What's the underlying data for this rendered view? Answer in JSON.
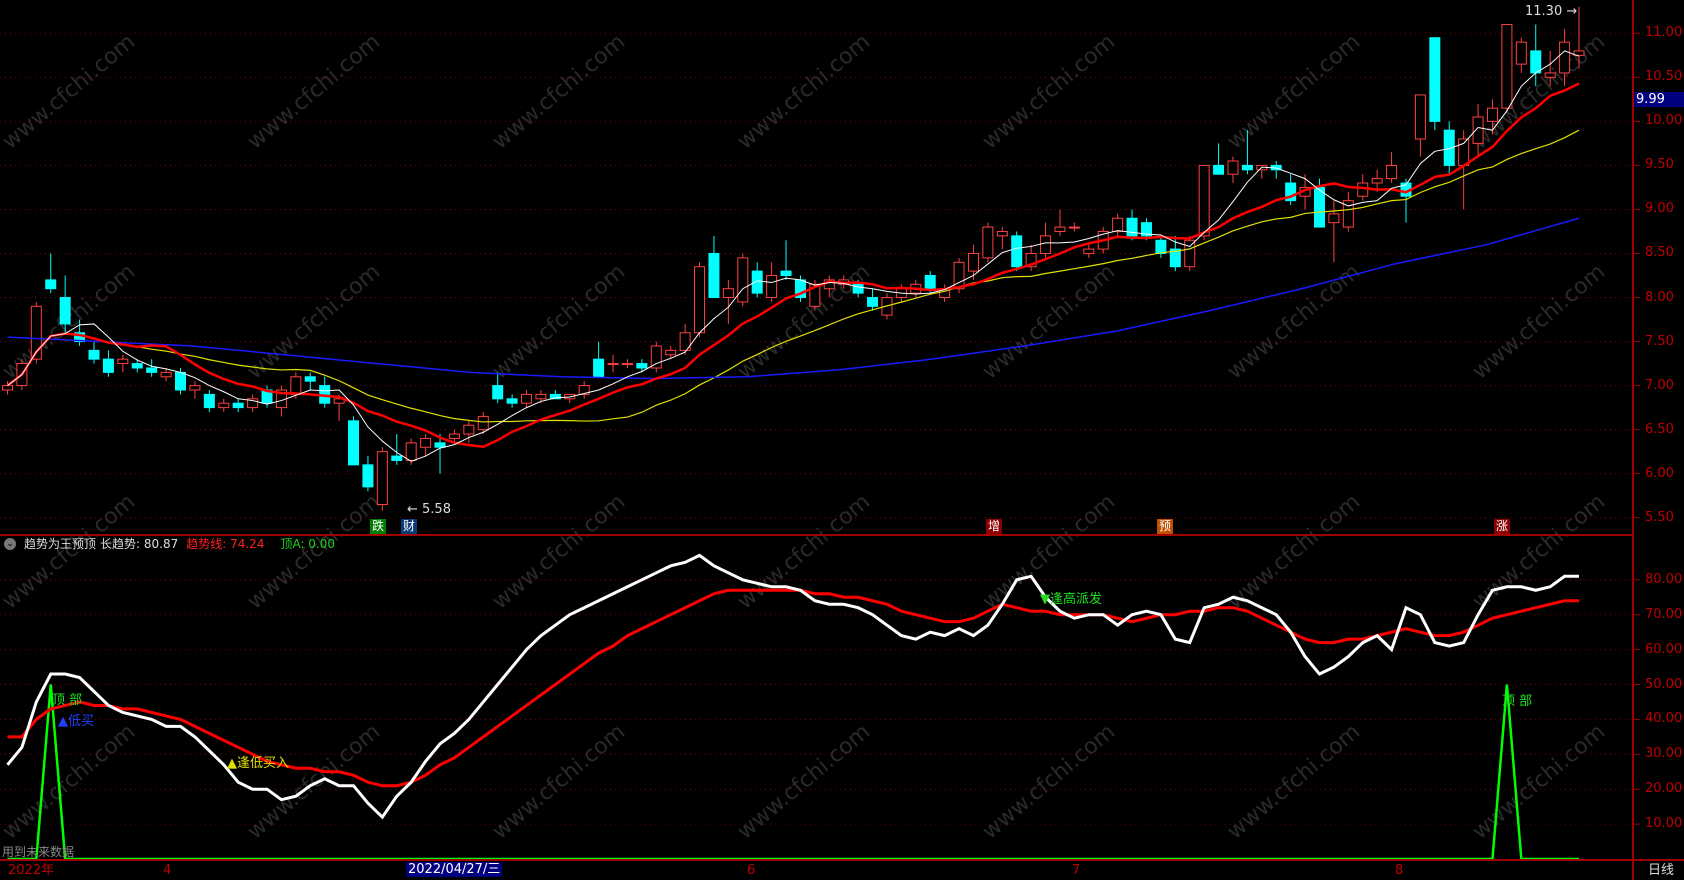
{
  "colors": {
    "up": "#ff4040",
    "down": "#00ffff",
    "ma5": "#ffffff",
    "ma10": "#ff0000",
    "ma20": "#e0e000",
    "ma_long": "#1a1aff",
    "axis": "#a00000",
    "grid": "#7a0000"
  },
  "watermark": "www.cfchi.com",
  "price_axis": {
    "ticks": [
      "11.00",
      "10.50",
      "10.00",
      "9.50",
      "9.00",
      "8.50",
      "8.00",
      "7.50",
      "7.00",
      "6.50",
      "6.00",
      "5.50"
    ],
    "current": "9.99"
  },
  "annotations": {
    "high": "11.30",
    "low": "5.58"
  },
  "markers": [
    {
      "text": "跌",
      "bg": "#008000"
    },
    {
      "text": "财",
      "bg": "#0a3a7a"
    },
    {
      "text": "增",
      "bg": "#8b0000"
    },
    {
      "text": "预",
      "bg": "#c05000"
    },
    {
      "text": "涨",
      "bg": "#8b0000"
    }
  ],
  "indicator": {
    "name": "趋势为王预顶",
    "long_label": "长趋势: 80.87",
    "trend_label": "趋势线: 74.24",
    "top_label": "顶A: 0.00",
    "ticks": [
      "80.00",
      "70.00",
      "60.00",
      "50.00",
      "40.00",
      "30.00",
      "20.00",
      "10.00"
    ],
    "signals": {
      "top1": "顶 部",
      "low_buy": "▲低买",
      "buy_low": "▲逢低买入",
      "sell_high": "▼逢高派发",
      "top2": "顶 部"
    },
    "future_note": "用到未来数据"
  },
  "date_axis": {
    "labels": [
      "2022年",
      "4",
      "6",
      "7",
      "8"
    ],
    "cursor": "2022/04/27/三",
    "period": "日线"
  },
  "chart_data": {
    "type": "candlestick",
    "price_range": [
      5.5,
      11.0
    ],
    "candles": [
      [
        6.95,
        7.05,
        6.9,
        7.0
      ],
      [
        7.0,
        7.3,
        6.95,
        7.25
      ],
      [
        7.3,
        7.95,
        7.25,
        7.9
      ],
      [
        8.2,
        8.5,
        8.05,
        8.1
      ],
      [
        8.0,
        8.25,
        7.6,
        7.7
      ],
      [
        7.6,
        7.75,
        7.45,
        7.5
      ],
      [
        7.4,
        7.5,
        7.25,
        7.3
      ],
      [
        7.3,
        7.4,
        7.1,
        7.15
      ],
      [
        7.25,
        7.35,
        7.15,
        7.3
      ],
      [
        7.25,
        7.3,
        7.15,
        7.2
      ],
      [
        7.2,
        7.3,
        7.1,
        7.15
      ],
      [
        7.1,
        7.2,
        7.05,
        7.15
      ],
      [
        7.15,
        7.2,
        6.9,
        6.95
      ],
      [
        6.95,
        7.05,
        6.85,
        7.0
      ],
      [
        6.9,
        6.95,
        6.7,
        6.75
      ],
      [
        6.75,
        6.85,
        6.7,
        6.8
      ],
      [
        6.8,
        6.85,
        6.7,
        6.75
      ],
      [
        6.75,
        6.9,
        6.7,
        6.85
      ],
      [
        6.95,
        7.0,
        6.75,
        6.8
      ],
      [
        6.75,
        7.0,
        6.65,
        6.95
      ],
      [
        6.9,
        7.15,
        6.85,
        7.1
      ],
      [
        7.1,
        7.15,
        6.95,
        7.05
      ],
      [
        7.0,
        7.1,
        6.75,
        6.8
      ],
      [
        6.8,
        6.9,
        6.6,
        6.85
      ],
      [
        6.6,
        6.65,
        6.1,
        6.1
      ],
      [
        6.1,
        6.2,
        5.8,
        5.85
      ],
      [
        5.65,
        6.3,
        5.58,
        6.25
      ],
      [
        6.2,
        6.45,
        6.1,
        6.15
      ],
      [
        6.15,
        6.4,
        6.1,
        6.35
      ],
      [
        6.3,
        6.45,
        6.2,
        6.4
      ],
      [
        6.35,
        6.45,
        6.0,
        6.3
      ],
      [
        6.4,
        6.5,
        6.35,
        6.45
      ],
      [
        6.45,
        6.6,
        6.35,
        6.55
      ],
      [
        6.5,
        6.7,
        6.45,
        6.65
      ],
      [
        7.0,
        7.15,
        6.8,
        6.85
      ],
      [
        6.85,
        6.9,
        6.75,
        6.8
      ],
      [
        6.8,
        6.95,
        6.75,
        6.9
      ],
      [
        6.85,
        6.95,
        6.8,
        6.9
      ],
      [
        6.9,
        6.95,
        6.85,
        6.85
      ],
      [
        6.85,
        6.9,
        6.8,
        6.9
      ],
      [
        6.9,
        7.05,
        6.85,
        7.0
      ],
      [
        7.3,
        7.5,
        7.1,
        7.1
      ],
      [
        7.25,
        7.35,
        7.15,
        7.25
      ],
      [
        7.25,
        7.3,
        7.2,
        7.25
      ],
      [
        7.25,
        7.3,
        7.15,
        7.2
      ],
      [
        7.2,
        7.5,
        7.15,
        7.45
      ],
      [
        7.35,
        7.45,
        7.3,
        7.4
      ],
      [
        7.4,
        7.7,
        7.35,
        7.6
      ],
      [
        7.6,
        8.4,
        7.55,
        8.35
      ],
      [
        8.5,
        8.7,
        8.0,
        8.0
      ],
      [
        8.0,
        8.2,
        7.7,
        8.1
      ],
      [
        7.95,
        8.5,
        7.9,
        8.45
      ],
      [
        8.3,
        8.4,
        8.0,
        8.05
      ],
      [
        8.0,
        8.4,
        7.95,
        8.25
      ],
      [
        8.3,
        8.65,
        8.2,
        8.25
      ],
      [
        8.2,
        8.25,
        7.95,
        8.0
      ],
      [
        7.9,
        8.2,
        7.85,
        8.15
      ],
      [
        8.1,
        8.25,
        8.0,
        8.2
      ],
      [
        8.15,
        8.25,
        8.1,
        8.2
      ],
      [
        8.15,
        8.2,
        8.0,
        8.05
      ],
      [
        8.0,
        8.1,
        7.85,
        7.9
      ],
      [
        7.8,
        8.05,
        7.75,
        8.0
      ],
      [
        8.0,
        8.15,
        7.95,
        8.1
      ],
      [
        8.05,
        8.2,
        8.0,
        8.15
      ],
      [
        8.25,
        8.3,
        8.05,
        8.1
      ],
      [
        8.0,
        8.15,
        7.95,
        8.1
      ],
      [
        8.1,
        8.45,
        8.05,
        8.4
      ],
      [
        8.3,
        8.6,
        8.2,
        8.5
      ],
      [
        8.45,
        8.85,
        8.4,
        8.8
      ],
      [
        8.7,
        8.8,
        8.55,
        8.75
      ],
      [
        8.7,
        8.75,
        8.3,
        8.35
      ],
      [
        8.35,
        8.6,
        8.3,
        8.5
      ],
      [
        8.5,
        8.85,
        8.45,
        8.7
      ],
      [
        8.75,
        9.0,
        8.7,
        8.8
      ],
      [
        8.8,
        8.85,
        8.75,
        8.8
      ],
      [
        8.5,
        8.6,
        8.45,
        8.55
      ],
      [
        8.55,
        8.8,
        8.5,
        8.75
      ],
      [
        8.75,
        8.95,
        8.7,
        8.9
      ],
      [
        8.9,
        9.0,
        8.65,
        8.7
      ],
      [
        8.85,
        8.9,
        8.65,
        8.7
      ],
      [
        8.65,
        8.7,
        8.45,
        8.5
      ],
      [
        8.55,
        8.7,
        8.3,
        8.35
      ],
      [
        8.35,
        8.7,
        8.3,
        8.65
      ],
      [
        8.7,
        9.5,
        8.65,
        9.5
      ],
      [
        9.5,
        9.75,
        9.4,
        9.4
      ],
      [
        9.4,
        9.6,
        9.3,
        9.55
      ],
      [
        9.5,
        9.9,
        9.4,
        9.45
      ],
      [
        9.45,
        9.5,
        9.35,
        9.5
      ],
      [
        9.5,
        9.55,
        9.35,
        9.45
      ],
      [
        9.3,
        9.4,
        9.05,
        9.1
      ],
      [
        9.15,
        9.4,
        9.0,
        9.25
      ],
      [
        9.25,
        9.35,
        8.8,
        8.8
      ],
      [
        8.85,
        9.1,
        8.4,
        8.95
      ],
      [
        8.8,
        9.2,
        8.75,
        9.1
      ],
      [
        9.15,
        9.4,
        9.1,
        9.3
      ],
      [
        9.3,
        9.45,
        9.2,
        9.35
      ],
      [
        9.35,
        9.65,
        9.3,
        9.5
      ],
      [
        9.3,
        9.35,
        8.85,
        9.15
      ],
      [
        9.8,
        10.3,
        9.6,
        10.3
      ],
      [
        10.95,
        10.95,
        9.9,
        10.0
      ],
      [
        9.9,
        10.0,
        9.4,
        9.5
      ],
      [
        9.5,
        9.9,
        9.0,
        9.8
      ],
      [
        9.75,
        10.2,
        9.6,
        10.05
      ],
      [
        10.0,
        10.25,
        9.85,
        10.15
      ],
      [
        10.15,
        11.1,
        10.1,
        11.1
      ],
      [
        10.65,
        10.95,
        10.55,
        10.9
      ],
      [
        10.8,
        11.1,
        10.4,
        10.55
      ],
      [
        10.5,
        10.8,
        10.4,
        10.55
      ],
      [
        10.55,
        11.05,
        10.4,
        10.9
      ],
      [
        10.75,
        11.3,
        10.6,
        10.8
      ]
    ],
    "ma_long": [
      7.55,
      7.5,
      7.45,
      7.35,
      7.25,
      7.15,
      7.1,
      7.08,
      7.1,
      7.18,
      7.3,
      7.45,
      7.62,
      7.85,
      8.1,
      8.38,
      8.6,
      8.9
    ],
    "indicator_range": [
      0,
      90
    ],
    "long_trend": [
      27,
      32,
      45,
      53,
      53,
      52,
      48,
      44,
      42,
      41,
      40,
      38,
      38,
      35,
      31,
      27,
      22,
      20,
      20,
      17,
      18,
      21,
      23,
      21,
      21,
      16,
      12,
      18,
      22,
      28,
      33,
      36,
      40,
      45,
      50,
      55,
      60,
      64,
      67,
      70,
      72,
      74,
      76,
      78,
      80,
      82,
      84,
      85,
      87,
      84,
      82,
      80,
      79,
      78,
      78,
      77,
      74,
      73,
      73,
      72,
      70,
      67,
      64,
      63,
      65,
      64,
      66,
      64,
      67,
      73,
      80,
      81,
      75,
      71,
      69,
      70,
      70,
      67,
      70,
      71,
      70,
      63,
      62,
      72,
      73,
      75,
      74,
      72,
      70,
      65,
      58,
      53,
      55,
      58,
      62,
      64,
      60,
      72,
      70,
      62,
      61,
      62,
      70,
      77,
      78,
      78,
      77,
      78,
      81,
      81
    ],
    "trend_line": [
      35,
      35,
      40,
      43,
      44,
      45,
      44,
      44,
      43,
      43,
      42,
      41,
      40,
      38,
      36,
      34,
      32,
      30,
      28,
      27,
      26,
      26,
      25,
      25,
      24,
      22,
      21,
      21,
      22,
      24,
      27,
      29,
      32,
      35,
      38,
      41,
      44,
      47,
      50,
      53,
      56,
      59,
      61,
      64,
      66,
      68,
      70,
      72,
      74,
      76,
      77,
      77,
      77,
      77,
      77,
      77,
      76,
      76,
      75,
      75,
      74,
      73,
      71,
      70,
      69,
      68,
      68,
      69,
      71,
      73,
      72,
      71,
      71,
      70,
      70,
      70,
      70,
      69,
      68,
      69,
      70,
      70,
      71,
      71,
      72,
      72,
      71,
      69,
      67,
      65,
      63,
      62,
      62,
      63,
      63,
      64,
      65,
      66,
      65,
      64,
      64,
      65,
      67,
      69,
      70,
      71,
      72,
      73,
      74,
      74
    ],
    "top_a_spikes": [
      {
        "index": 3,
        "value": 50
      },
      {
        "index": 104,
        "value": 50
      }
    ]
  }
}
